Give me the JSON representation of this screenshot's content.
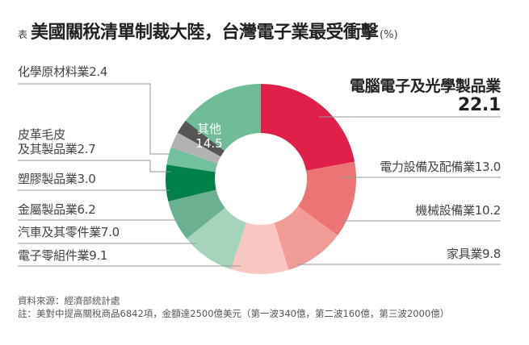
{
  "title": {
    "prefix": "表",
    "main": "美國關稅清單制裁大陸，台灣電子業最受衝擊",
    "unit": "(%)"
  },
  "chart_data": {
    "type": "pie",
    "subtype": "donut",
    "title": "美國關稅清單制裁大陸，台灣電子業最受衝擊 (%)",
    "unit": "%",
    "start_angle": "12 o'clock",
    "direction": "clockwise",
    "categories": [
      "電腦電子及光學製品業",
      "電力設備及配備業",
      "機械設備業",
      "家具業",
      "電子零組件業",
      "汽車及其零件業",
      "金屬製品業",
      "塑膠製品業",
      "皮革毛皮及其製品業",
      "化學原材料業",
      "其他"
    ],
    "values": [
      22.1,
      13.0,
      10.2,
      9.8,
      9.1,
      7.0,
      6.2,
      3.0,
      2.7,
      2.4,
      14.5
    ],
    "colors": [
      "#e0204a",
      "#ec7475",
      "#f19c97",
      "#f9c6c1",
      "#a6d3bc",
      "#6bb191",
      "#00814a",
      "#72c09d",
      "#b3b3b3",
      "#555555",
      "#6fbc97"
    ]
  },
  "labels": {
    "computer": {
      "name": "電腦電子及光學製品業",
      "value": "22.1"
    },
    "power": {
      "text": "電力設備及配備業13.0"
    },
    "machinery": {
      "text": "機械設備業10.2"
    },
    "furniture": {
      "text": "家具業9.8"
    },
    "components": {
      "text": "電子零組件業9.1"
    },
    "auto": {
      "text": "汽車及其零件業7.0"
    },
    "metal": {
      "text": "金屬製品業6.2"
    },
    "plastic": {
      "text": "塑膠製品業3.0"
    },
    "leather": {
      "line1": "皮革毛皮",
      "line2": "及其製品業2.7"
    },
    "chemical": {
      "text": "化學原材料業2.4"
    },
    "other": {
      "name": "其他",
      "value": "14.5"
    }
  },
  "footer": {
    "source": "資料來源：經濟部統計處",
    "note": "註：美對中提高關稅商品6842項，金額達2500億美元（第一波340億，第二波160億，第三波2000億）"
  }
}
